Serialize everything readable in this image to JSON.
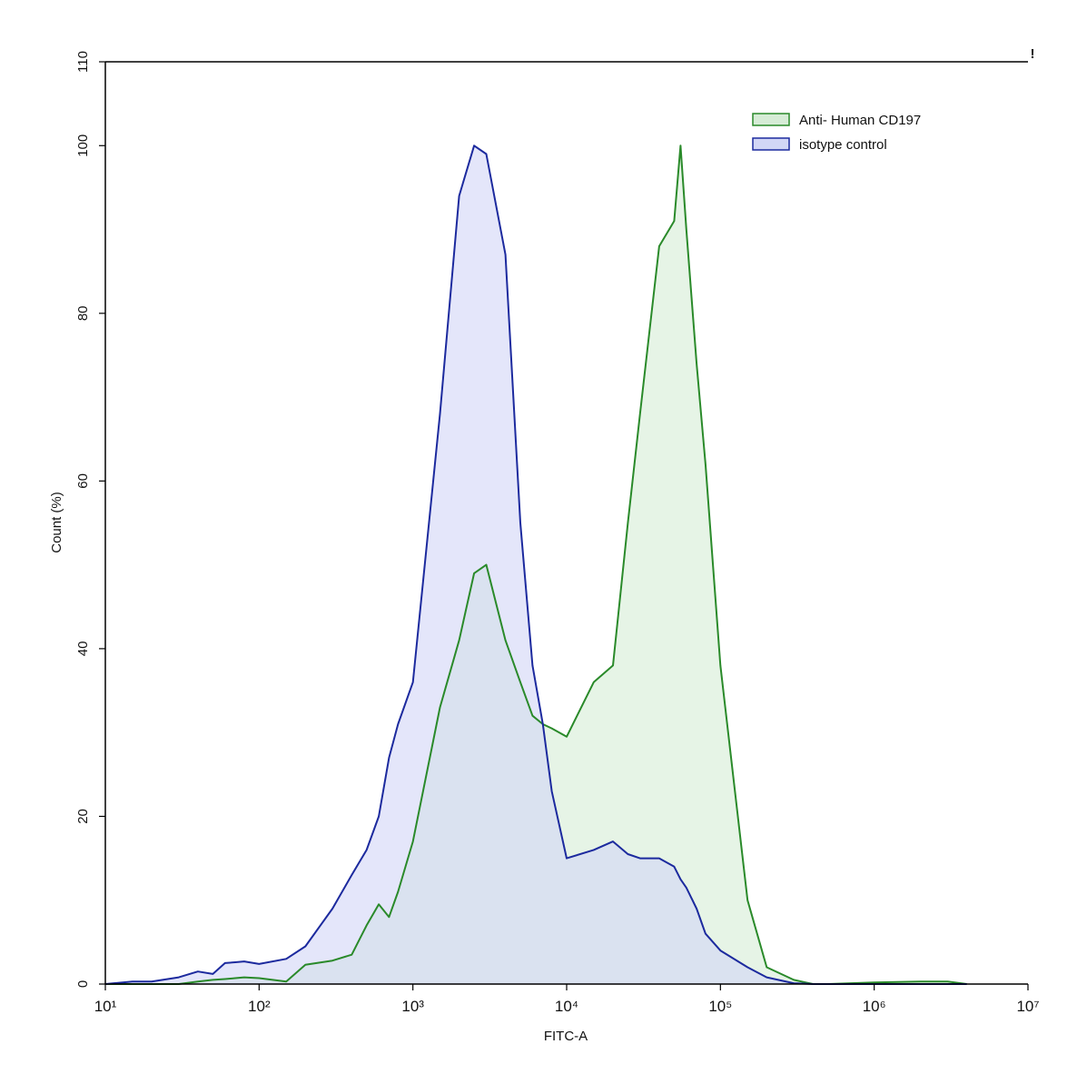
{
  "chart_data": {
    "type": "area",
    "x_label": "FITC-A",
    "y_label": "Count  (%)",
    "annotation": "!",
    "x_log": true,
    "xlim": [
      10,
      10000000
    ],
    "xticks": [
      {
        "value": 10,
        "label": "10¹"
      },
      {
        "value": 100,
        "label": "10²"
      },
      {
        "value": 1000,
        "label": "10³"
      },
      {
        "value": 10000,
        "label": "10⁴"
      },
      {
        "value": 100000,
        "label": "10⁵"
      },
      {
        "value": 1000000,
        "label": "10⁶"
      },
      {
        "value": 10000000,
        "label": "10⁷"
      }
    ],
    "ylim": [
      0,
      110
    ],
    "yticks": [
      0,
      20,
      40,
      60,
      80,
      100,
      110
    ],
    "legend": "upper right",
    "x": [
      10,
      15,
      20,
      30,
      40,
      50,
      60,
      70,
      80,
      100,
      150,
      200,
      300,
      400,
      500,
      600,
      700,
      800,
      1000,
      1500,
      2000,
      2500,
      3000,
      4000,
      5000,
      6000,
      7000,
      8000,
      10000,
      15000,
      20000,
      25000,
      30000,
      40000,
      50000,
      55000,
      60000,
      70000,
      80000,
      100000,
      150000,
      200000,
      300000,
      400000,
      500000,
      1000000,
      2000000,
      3000000,
      4000000
    ],
    "series": [
      {
        "name": "Anti- Human CD197",
        "color": "#2a8a2a",
        "fill": "#d6ecd6",
        "values": [
          0,
          0,
          0,
          0,
          0.3,
          0.5,
          0.6,
          0.7,
          0.8,
          0.7,
          0.3,
          2.3,
          2.8,
          3.5,
          7,
          9.5,
          8,
          11,
          17,
          33,
          41,
          49,
          50,
          41,
          36,
          32,
          31,
          30.5,
          29.5,
          36,
          38,
          55,
          68,
          88,
          91,
          100,
          90,
          74,
          62,
          38,
          10,
          2,
          0.5,
          0,
          0,
          0.2,
          0.3,
          0.3,
          0
        ]
      },
      {
        "name": "isotype control",
        "color": "#1c2a9e",
        "fill": "#d2d6f6",
        "values": [
          0,
          0.3,
          0.3,
          0.8,
          1.5,
          1.2,
          2.5,
          2.6,
          2.7,
          2.4,
          3,
          4.5,
          9,
          13,
          16,
          20,
          27,
          31,
          36,
          68,
          94,
          100,
          99,
          87,
          55,
          38,
          31,
          23,
          15,
          16,
          17,
          15.5,
          15,
          15,
          14,
          12.5,
          11.5,
          9,
          6,
          4,
          2,
          0.8,
          0.1,
          0,
          0,
          0,
          0,
          0,
          0
        ]
      }
    ]
  }
}
